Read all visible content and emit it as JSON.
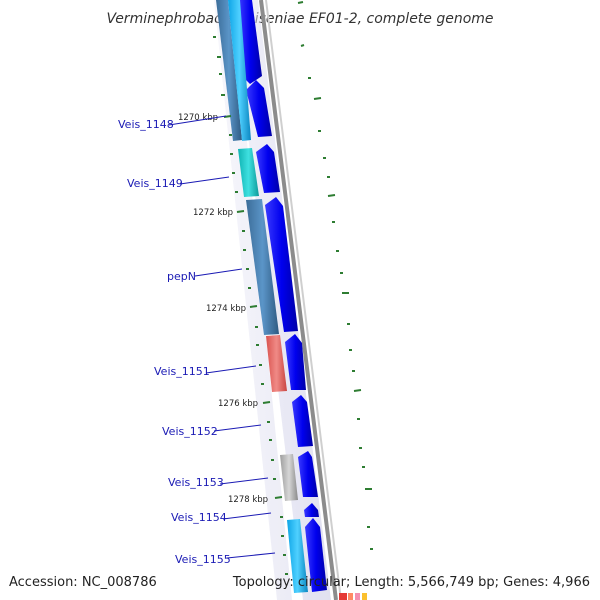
{
  "title": "Verminephrobacter eiseniae EF01-2, complete genome",
  "footer": {
    "accession": "Accession: NC_008786",
    "summary": "Topology: circular; Length: 5,566,749 bp; Genes: 4,966"
  },
  "genes": [
    {
      "label": "Veis_1148",
      "color": "#5b9bd5"
    },
    {
      "label": "Veis_1149",
      "color": "#22c4c4"
    },
    {
      "label": "pepN",
      "color": "#4682b4"
    },
    {
      "label": "Veis_1151",
      "color": "#e57373"
    },
    {
      "label": "Veis_1152",
      "color": ""
    },
    {
      "label": "Veis_1153",
      "color": "#bdbdbd"
    },
    {
      "label": "Veis_1154",
      "color": ""
    },
    {
      "label": "Veis_1155",
      "color": "#29b6f6"
    }
  ],
  "kbp_marks": [
    "1270 kbp",
    "1272 kbp",
    "1274 kbp",
    "1276 kbp",
    "1278 kbp"
  ],
  "colors": {
    "cds_blue": "#0000ee",
    "backbone": "#8c8c8c",
    "gene_label": "#1a1ab4",
    "tick_green": "#2e7d32"
  }
}
